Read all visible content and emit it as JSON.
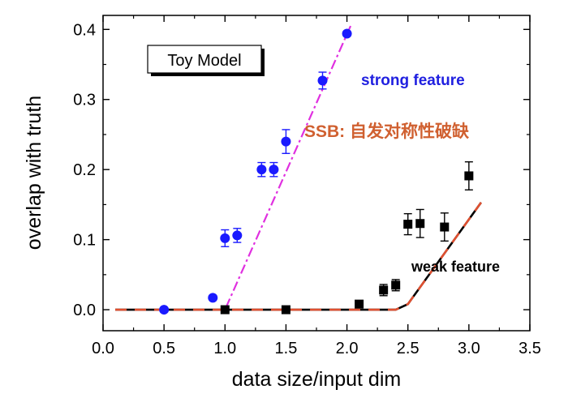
{
  "chart_data": {
    "type": "scatter",
    "title": "",
    "xlabel": "data size/input dim",
    "ylabel": "overlap with truth",
    "xlim": [
      0.0,
      3.5
    ],
    "ylim": [
      -0.03,
      0.42
    ],
    "xticks": [
      0.0,
      0.5,
      1.0,
      1.5,
      2.0,
      2.5,
      3.0,
      3.5
    ],
    "xtick_labels": [
      "0.0",
      "0.5",
      "1.0",
      "1.5",
      "2.0",
      "2.5",
      "3.0",
      "3.5"
    ],
    "yticks": [
      0.0,
      0.1,
      0.2,
      0.3,
      0.4
    ],
    "ytick_labels": [
      "0.0",
      "0.1",
      "0.2",
      "0.3",
      "0.4"
    ],
    "grid": false,
    "legend_box": "Toy Model",
    "annotations": {
      "strong": "strong feature",
      "ssb": "SSB: 自发对称性破缺",
      "weak": "weak feature"
    },
    "colors": {
      "strong_points": "#1a1aff",
      "strong_line": "#e030e0",
      "weak_points": "#000000",
      "weak_line_dash": "#e05030",
      "ssb_text": "#d06030",
      "strong_text": "#2020e0"
    },
    "series": [
      {
        "marker": "circle",
        "x": [
          0.5,
          0.9,
          1.0,
          1.1,
          1.3,
          1.4,
          1.5,
          1.8,
          2.0
        ],
        "y": [
          0.0,
          0.017,
          0.102,
          0.106,
          0.2,
          0.2,
          0.24,
          0.327,
          0.394
        ],
        "err": [
          0.0,
          0.0,
          0.012,
          0.01,
          0.01,
          0.01,
          0.017,
          0.012,
          0.0
        ]
      },
      {
        "marker": "square",
        "x": [
          1.0,
          1.5,
          2.1,
          2.3,
          2.4,
          2.5,
          2.6,
          2.8,
          3.0
        ],
        "y": [
          0.0,
          0.0,
          0.008,
          0.028,
          0.035,
          0.122,
          0.123,
          0.118,
          0.191
        ],
        "err": [
          0.0,
          0.0,
          0.0,
          0.008,
          0.008,
          0.015,
          0.02,
          0.02,
          0.02
        ]
      }
    ],
    "lines": [
      {
        "style": "dash-dot",
        "x": [
          0.1,
          1.0,
          2.03
        ],
        "y": [
          0.0,
          0.0,
          0.405
        ]
      },
      {
        "style": "solid+dashed",
        "x": [
          0.1,
          2.4,
          2.5,
          3.1
        ],
        "y": [
          0.0,
          0.0,
          0.008,
          0.153
        ]
      }
    ]
  }
}
